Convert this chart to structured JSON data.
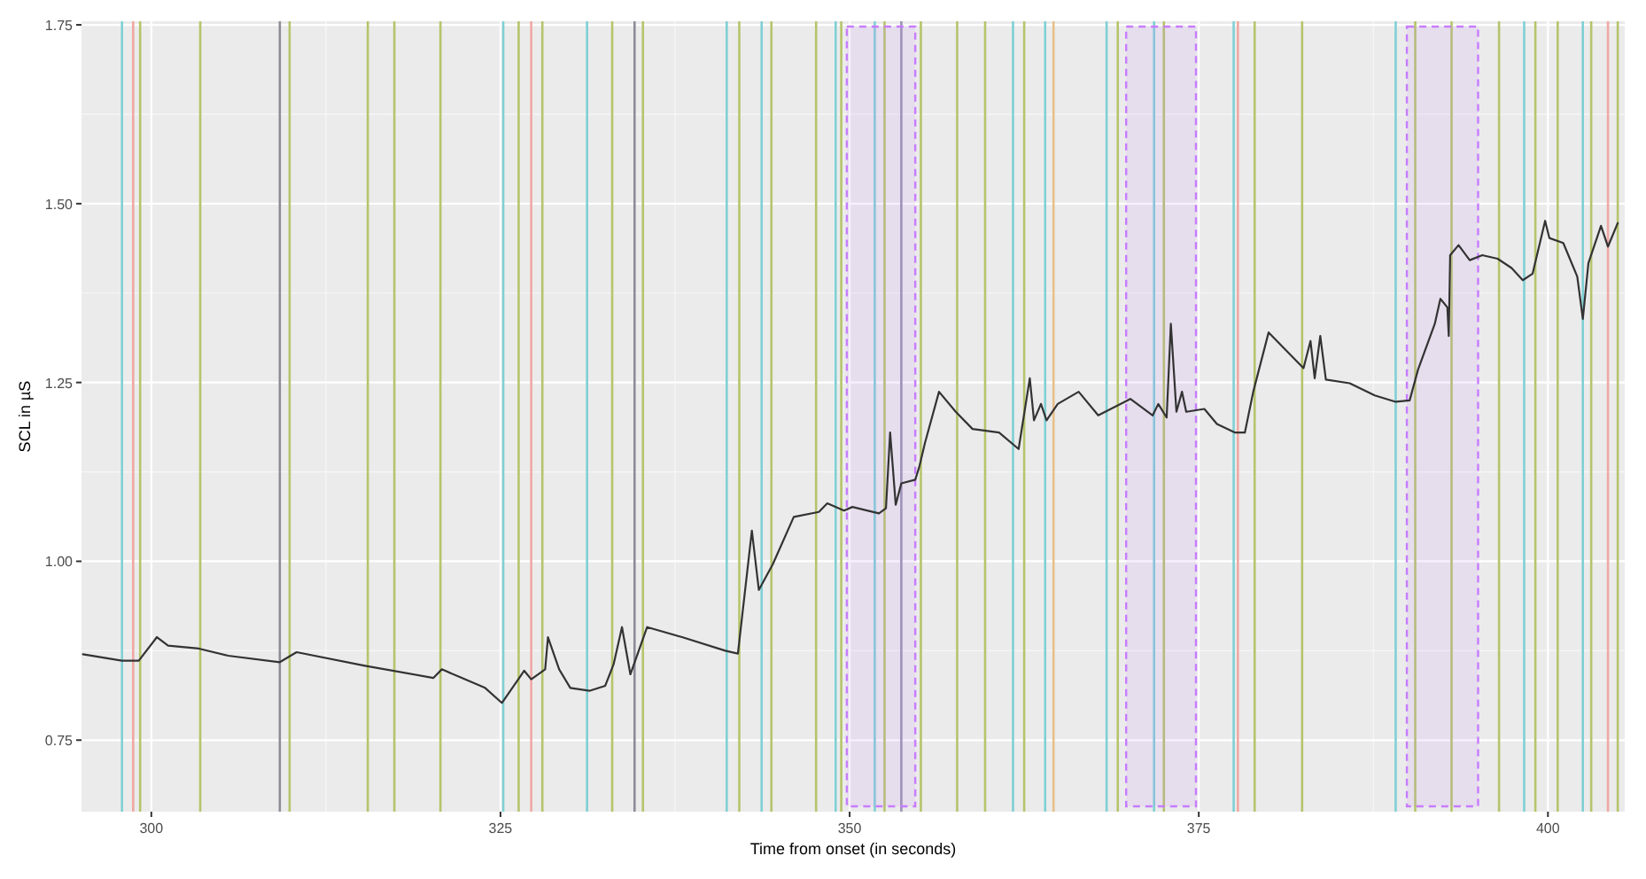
{
  "chart_data": {
    "type": "line",
    "xlabel": "Time from onset (in seconds)",
    "ylabel": "SCL in µS",
    "xlim": [
      295,
      405.5
    ],
    "ylim": [
      0.65,
      1.755
    ],
    "xticks": [
      300,
      325,
      350,
      375,
      400
    ],
    "yticks": [
      0.75,
      {
        "value": 1,
        "label": "1.00"
      },
      1.25,
      {
        "value": 1.5,
        "label": "1.50"
      },
      1.75
    ],
    "grid": true,
    "series": [
      {
        "color": "#333333",
        "x": [
          295.1,
          297.9,
          299.1,
          300.4,
          301.2,
          303.4,
          305.5,
          309.2,
          310.4,
          315.3,
          320.2,
          320.8,
          323.9,
          325.1,
          326.7,
          327.2,
          328.2,
          328.4,
          329.2,
          330.0,
          331.4,
          332.5,
          333.1,
          333.7,
          334.3,
          335.5,
          338.0,
          341.1,
          342.0,
          343.0,
          343.5,
          344.5,
          346.0,
          347.8,
          348.4,
          349.6,
          350.2,
          352.1,
          352.6,
          352.9,
          353.3,
          353.7,
          354.7,
          355.0,
          355.4,
          356.4,
          357.6,
          358.8,
          360.7,
          362.1,
          362.9,
          363.2,
          363.7,
          364.1,
          364.9,
          366.4,
          367.8,
          370.1,
          371.7,
          372.1,
          372.7,
          373.0,
          373.4,
          373.8,
          374.1,
          375.4,
          376.3,
          377.6,
          378.3,
          378.9,
          380.0,
          382.5,
          383.0,
          383.3,
          383.7,
          384.1,
          385.8,
          387.6,
          389.1,
          390.1,
          390.7,
          391.9,
          392.3,
          392.8,
          392.9,
          393.0,
          393.6,
          394.4,
          395.3,
          396.4,
          397.4,
          398.2,
          398.9,
          399.8,
          400.1,
          401.1,
          402.1,
          402.5,
          402.9,
          403.8,
          404.3,
          405.0
        ],
        "values": [
          0.87,
          0.861,
          0.861,
          0.894,
          0.882,
          0.878,
          0.868,
          0.859,
          0.873,
          0.854,
          0.837,
          0.849,
          0.823,
          0.802,
          0.847,
          0.835,
          0.849,
          0.894,
          0.849,
          0.823,
          0.819,
          0.826,
          0.856,
          0.908,
          0.842,
          0.908,
          0.894,
          0.875,
          0.871,
          1.043,
          0.96,
          0.996,
          1.062,
          1.069,
          1.081,
          1.071,
          1.076,
          1.067,
          1.074,
          1.18,
          1.079,
          1.109,
          1.114,
          1.133,
          1.166,
          1.237,
          1.209,
          1.185,
          1.18,
          1.157,
          1.256,
          1.197,
          1.22,
          1.197,
          1.22,
          1.237,
          1.204,
          1.227,
          1.204,
          1.22,
          1.201,
          1.332,
          1.209,
          1.237,
          1.209,
          1.213,
          1.192,
          1.18,
          1.18,
          1.237,
          1.32,
          1.27,
          1.308,
          1.256,
          1.315,
          1.254,
          1.249,
          1.232,
          1.223,
          1.225,
          1.268,
          1.332,
          1.367,
          1.355,
          1.315,
          1.428,
          1.442,
          1.421,
          1.428,
          1.423,
          1.41,
          1.393,
          1.402,
          1.476,
          1.452,
          1.445,
          1.398,
          1.339,
          1.417,
          1.469,
          1.44,
          1.473
        ]
      }
    ],
    "ref_lines": [
      {
        "axis": "x",
        "value": 297.9,
        "color": "#7fd0d4"
      },
      {
        "axis": "x",
        "value": 298.7,
        "color": "#f0a8a4"
      },
      {
        "axis": "x",
        "value": 299.2,
        "color": "#b6c46c"
      },
      {
        "axis": "x",
        "value": 303.5,
        "color": "#b6c46c"
      },
      {
        "axis": "x",
        "value": 309.2,
        "color": "#8e8c98"
      },
      {
        "axis": "x",
        "value": 309.9,
        "color": "#b6c46c"
      },
      {
        "axis": "x",
        "value": 315.5,
        "color": "#b6c46c"
      },
      {
        "axis": "x",
        "value": 317.4,
        "color": "#b6c46c"
      },
      {
        "axis": "x",
        "value": 320.7,
        "color": "#b6c46c"
      },
      {
        "axis": "x",
        "value": 325.2,
        "color": "#7fd0d4"
      },
      {
        "axis": "x",
        "value": 326.3,
        "color": "#b6c46c"
      },
      {
        "axis": "x",
        "value": 327.2,
        "color": "#f0a8a4"
      },
      {
        "axis": "x",
        "value": 328.0,
        "color": "#b6c46c"
      },
      {
        "axis": "x",
        "value": 331.2,
        "color": "#7fd0d4"
      },
      {
        "axis": "x",
        "value": 333.0,
        "color": "#b6c46c"
      },
      {
        "axis": "x",
        "value": 334.6,
        "color": "#8e8c98"
      },
      {
        "axis": "x",
        "value": 335.2,
        "color": "#b6c46c"
      },
      {
        "axis": "x",
        "value": 341.2,
        "color": "#7fd0d4"
      },
      {
        "axis": "x",
        "value": 342.1,
        "color": "#b6c46c"
      },
      {
        "axis": "x",
        "value": 343.7,
        "color": "#7fd0d4"
      },
      {
        "axis": "x",
        "value": 344.4,
        "color": "#b6c46c"
      },
      {
        "axis": "x",
        "value": 347.6,
        "color": "#b6c46c"
      },
      {
        "axis": "x",
        "value": 349.0,
        "color": "#7fd0d4"
      },
      {
        "axis": "x",
        "value": 349.4,
        "color": "#b6c46c"
      },
      {
        "axis": "x",
        "value": 351.8,
        "color": "#7fd0d4"
      },
      {
        "axis": "x",
        "value": 352.5,
        "color": "#b6c46c"
      },
      {
        "axis": "x",
        "value": 353.7,
        "color": "#9a94b0"
      },
      {
        "axis": "x",
        "value": 355.1,
        "color": "#b6c46c"
      },
      {
        "axis": "x",
        "value": 357.7,
        "color": "#b6c46c"
      },
      {
        "axis": "x",
        "value": 359.7,
        "color": "#b6c46c"
      },
      {
        "axis": "x",
        "value": 361.7,
        "color": "#7fd0d4"
      },
      {
        "axis": "x",
        "value": 362.5,
        "color": "#b6c46c"
      },
      {
        "axis": "x",
        "value": 364.0,
        "color": "#7fd0d4"
      },
      {
        "axis": "x",
        "value": 364.6,
        "color": "#e8c08a"
      },
      {
        "axis": "x",
        "value": 368.4,
        "color": "#7fd0d4"
      },
      {
        "axis": "x",
        "value": 369.2,
        "color": "#b6c46c"
      },
      {
        "axis": "x",
        "value": 371.8,
        "color": "#7fd0d4"
      },
      {
        "axis": "x",
        "value": 372.5,
        "color": "#b6c46c"
      },
      {
        "axis": "x",
        "value": 377.5,
        "color": "#7fd0d4"
      },
      {
        "axis": "x",
        "value": 377.8,
        "color": "#f0a8a4"
      },
      {
        "axis": "x",
        "value": 379.0,
        "color": "#b6c46c"
      },
      {
        "axis": "x",
        "value": 382.4,
        "color": "#b6c46c"
      },
      {
        "axis": "x",
        "value": 389.1,
        "color": "#7fd0d4"
      },
      {
        "axis": "x",
        "value": 390.5,
        "color": "#b6c46c"
      },
      {
        "axis": "x",
        "value": 393.1,
        "color": "#b6c46c"
      },
      {
        "axis": "x",
        "value": 396.5,
        "color": "#b6c46c"
      },
      {
        "axis": "x",
        "value": 398.3,
        "color": "#7fd0d4"
      },
      {
        "axis": "x",
        "value": 399.1,
        "color": "#b6c46c"
      },
      {
        "axis": "x",
        "value": 400.7,
        "color": "#b6c46c"
      },
      {
        "axis": "x",
        "value": 402.5,
        "color": "#7fd0d4"
      },
      {
        "axis": "x",
        "value": 403.1,
        "color": "#b6c46c"
      },
      {
        "axis": "x",
        "value": 404.3,
        "color": "#f0a8a4"
      },
      {
        "axis": "x",
        "value": 405.0,
        "color": "#b6c46c"
      }
    ],
    "bands": [
      {
        "axis": "x",
        "from": 349.8,
        "to": 354.7,
        "color": "#c77cff"
      },
      {
        "axis": "x",
        "from": 369.8,
        "to": 374.8,
        "color": "#c77cff"
      },
      {
        "axis": "x",
        "from": 389.9,
        "to": 395.0,
        "color": "#c77cff"
      }
    ]
  }
}
